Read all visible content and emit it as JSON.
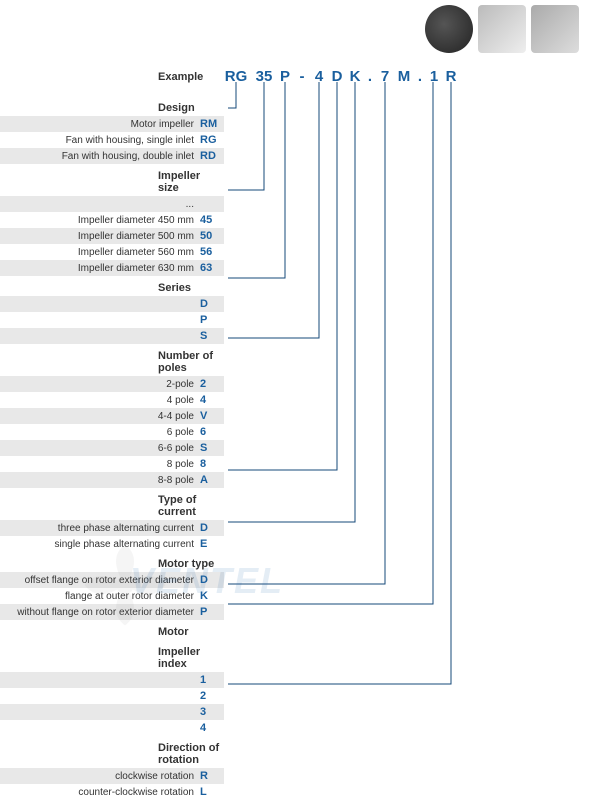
{
  "example_label": "Example",
  "code": {
    "rg": "RG",
    "n35": "35",
    "p": "P",
    "dash": "-",
    "n4": "4",
    "d": "D",
    "k": "K",
    "dot1": ".",
    "n7": "7",
    "m": "M",
    "dot2": ".",
    "n1": "1",
    "r": "R"
  },
  "sections": {
    "design": {
      "title": "Design",
      "rows": [
        {
          "label": "Motor impeller",
          "code": "RM"
        },
        {
          "label": "Fan with housing, single inlet",
          "code": "RG"
        },
        {
          "label": "Fan with housing, double inlet",
          "code": "RD"
        }
      ]
    },
    "impeller_size": {
      "title": "Impeller size",
      "rows": [
        {
          "label": "...",
          "code": ""
        },
        {
          "label": "Impeller diameter 450 mm",
          "code": "45"
        },
        {
          "label": "Impeller diameter 500 mm",
          "code": "50"
        },
        {
          "label": "Impeller diameter 560 mm",
          "code": "56"
        },
        {
          "label": "Impeller diameter 630 mm",
          "code": "63"
        }
      ]
    },
    "series": {
      "title": "Series",
      "rows": [
        {
          "label": "",
          "code": "D"
        },
        {
          "label": "",
          "code": "P"
        },
        {
          "label": "",
          "code": "S"
        }
      ]
    },
    "poles": {
      "title": "Number of poles",
      "rows": [
        {
          "label": "2-pole",
          "code": "2"
        },
        {
          "label": "4 pole",
          "code": "4"
        },
        {
          "label": "4-4 pole",
          "code": "V"
        },
        {
          "label": "6 pole",
          "code": "6"
        },
        {
          "label": "6-6 pole",
          "code": "S"
        },
        {
          "label": "8 pole",
          "code": "8"
        },
        {
          "label": "8-8 pole",
          "code": "A"
        }
      ]
    },
    "current": {
      "title": "Type of current",
      "rows": [
        {
          "label": "three phase alternating current",
          "code": "D"
        },
        {
          "label": "single phase alternating current",
          "code": "E"
        }
      ]
    },
    "motor_type": {
      "title": "Motor type",
      "rows": [
        {
          "label": "offset flange on rotor exterior diameter",
          "code": "D"
        },
        {
          "label": "flange at outer rotor diameter",
          "code": "K"
        },
        {
          "label": "without flange on rotor exterior diameter",
          "code": "P"
        }
      ]
    },
    "motor": {
      "title": "Motor",
      "rows": []
    },
    "impeller_index": {
      "title": "Impeller index",
      "rows": [
        {
          "label": "",
          "code": "1"
        },
        {
          "label": "",
          "code": "2"
        },
        {
          "label": "",
          "code": "3"
        },
        {
          "label": "",
          "code": "4"
        }
      ]
    },
    "rotation": {
      "title": "Direction of rotation",
      "rows": [
        {
          "label": "clockwise rotation",
          "code": "R"
        },
        {
          "label": "counter-clockwise rotation",
          "code": "L"
        }
      ]
    }
  },
  "colors": {
    "accent": "#1a5f9e",
    "line": "#14487a",
    "alt_row": "#e8e8e8",
    "text": "#333333"
  },
  "watermark": "VENTEL"
}
